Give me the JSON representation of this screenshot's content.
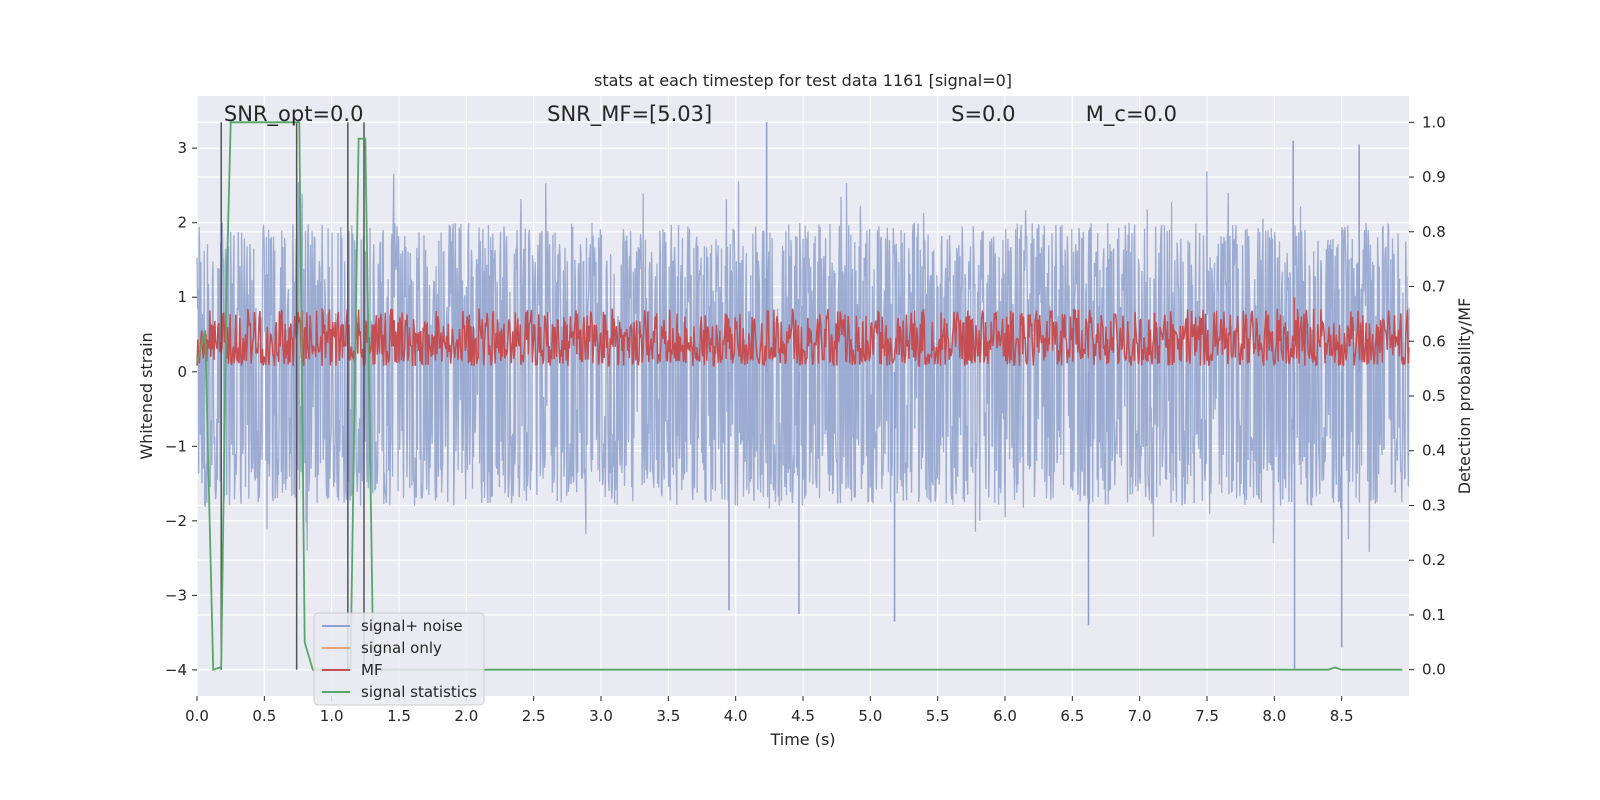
{
  "chart_data": {
    "type": "line",
    "title": "stats at each timestep for test data 1161 [signal=0]",
    "xlabel": "Time (s)",
    "ylabel_left": "Whitened strain",
    "ylabel_right": "Detection probability/MF",
    "xlim": [
      0.0,
      9.0
    ],
    "ylim_left": [
      -4.35,
      3.7
    ],
    "ylim_right": [
      -0.048,
      1.048
    ],
    "xticks": [
      "0.0",
      "0.5",
      "1.0",
      "1.5",
      "2.0",
      "2.5",
      "3.0",
      "3.5",
      "4.0",
      "4.5",
      "5.0",
      "5.5",
      "6.0",
      "6.5",
      "7.0",
      "7.5",
      "8.0",
      "8.5"
    ],
    "yticks_left": [
      "−4",
      "−3",
      "−2",
      "−1",
      "0",
      "1",
      "2",
      "3"
    ],
    "yticks_right": [
      "0.0",
      "0.1",
      "0.2",
      "0.3",
      "0.4",
      "0.5",
      "0.6",
      "0.7",
      "0.8",
      "0.9",
      "1.0"
    ],
    "annotations": [
      {
        "text": "SNR_opt=0.0",
        "x": 0.2
      },
      {
        "text": "SNR_MF=[5.03]",
        "x": 2.6
      },
      {
        "text": "S=0.0",
        "x": 5.6
      },
      {
        "text": "M_c=0.0",
        "x": 6.6
      }
    ],
    "legend": {
      "placement": "lower-left",
      "entries": [
        {
          "label": "signal+ noise",
          "color": "#8da0cb"
        },
        {
          "label": "signal only",
          "color": "#e8a07f"
        },
        {
          "label": "MF",
          "color": "#c44e52"
        },
        {
          "label": "signal statistics",
          "color": "#55a868"
        }
      ]
    },
    "grid": true,
    "background": "#eaeaf2",
    "series": [
      {
        "name": "signal+ noise",
        "axis": "left",
        "color": "#8da0cb",
        "description": "whitened noise, approx. uniform in [-1.8, 2.0] with peaks to ±3.3",
        "band_low": -1.8,
        "band_high": 2.0,
        "peaks": [
          {
            "x": 4.23,
            "y": 3.35
          },
          {
            "x": 8.14,
            "y": 3.1
          },
          {
            "x": 8.63,
            "y": 3.05
          },
          {
            "x": 8.15,
            "y": -4.0
          },
          {
            "x": 8.5,
            "y": -3.7
          },
          {
            "x": 6.62,
            "y": -3.4
          },
          {
            "x": 5.18,
            "y": -3.35
          },
          {
            "x": 4.47,
            "y": -3.25
          },
          {
            "x": 3.95,
            "y": -3.2
          }
        ]
      },
      {
        "name": "MF",
        "axis": "right",
        "color": "#c44e52",
        "description": "matched filter output, around 0.60 with spikes",
        "band_low": 0.555,
        "band_high": 0.66,
        "peaks": [
          {
            "x": 8.15,
            "y": 0.68
          },
          {
            "x": 0.93,
            "y": 0.66
          }
        ]
      },
      {
        "name": "signal statistics",
        "axis": "right",
        "color": "#55a868",
        "x": [
          0.0,
          0.06,
          0.12,
          0.18,
          0.22,
          0.25,
          0.3,
          0.5,
          0.7,
          0.74,
          0.76,
          0.8,
          0.86,
          0.95,
          1.1,
          1.14,
          1.2,
          1.25,
          1.31,
          1.5,
          2.0,
          3.0,
          4.0,
          5.0,
          6.0,
          7.0,
          8.0,
          8.4,
          8.45,
          8.5,
          8.95
        ],
        "values": [
          0.56,
          0.62,
          0.0,
          0.005,
          0.7,
          1.0,
          1.0,
          1.0,
          1.0,
          1.0,
          1.0,
          0.05,
          0.0,
          0.0,
          0.0,
          0.0,
          0.97,
          0.97,
          0.0,
          0.0,
          0.0,
          0.0,
          0.0,
          0.0,
          0.0,
          0.0,
          0.0,
          0.0,
          0.004,
          0.0,
          0.0
        ]
      }
    ],
    "vertical_lines": {
      "color": "#555555",
      "x": [
        0.18,
        0.74,
        1.12,
        1.24
      ]
    }
  }
}
